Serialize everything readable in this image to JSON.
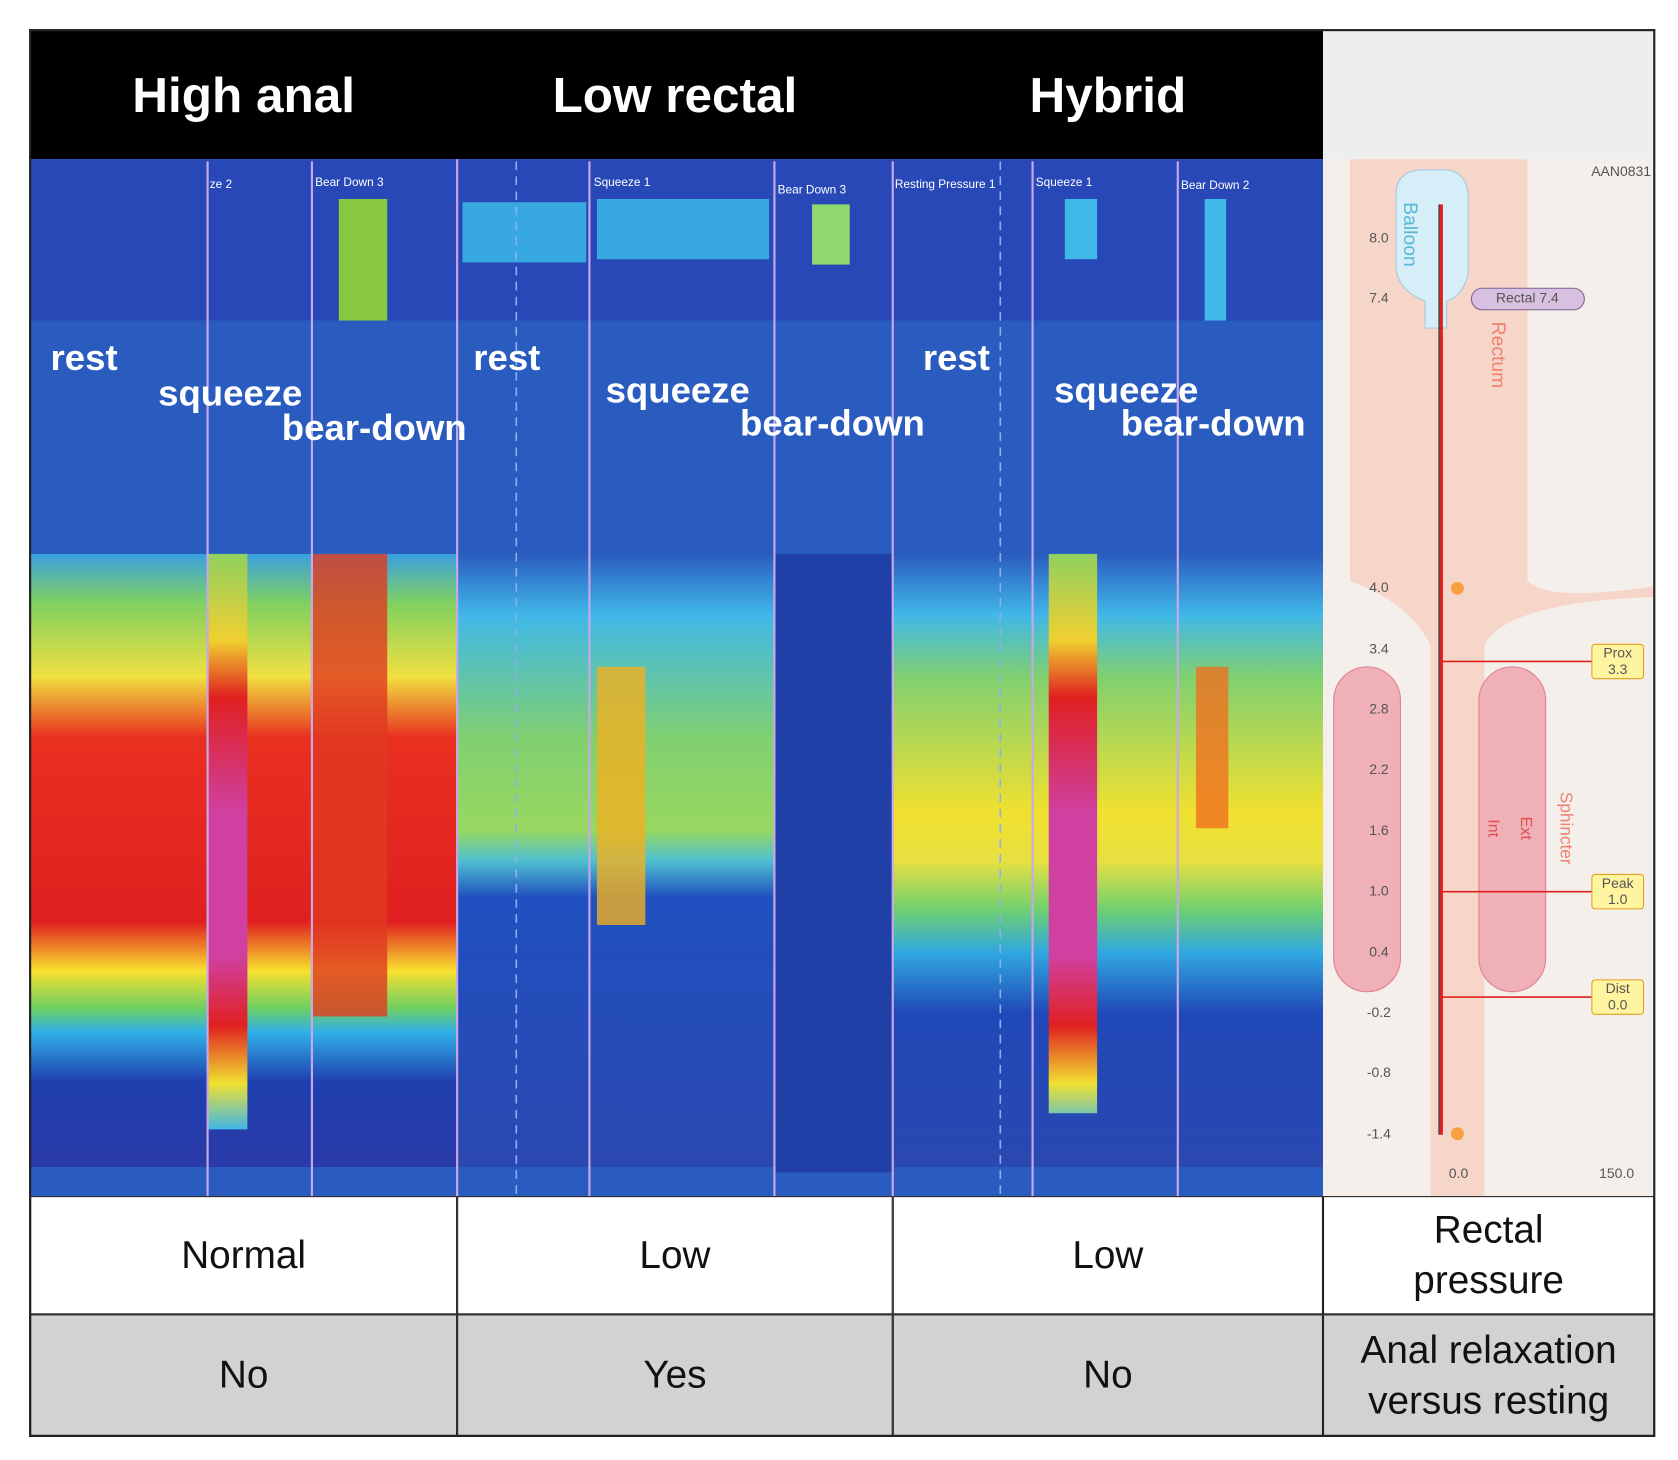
{
  "headers": [
    "High anal",
    "Low rectal",
    "Hybrid"
  ],
  "panels": [
    {
      "labels": [
        "ze 2",
        "Bear Down 3"
      ],
      "phases": [
        "rest",
        "squeeze",
        "bear-down"
      ]
    },
    {
      "labels": [
        "Squeeze 1",
        "Bear Down 3"
      ],
      "phases": [
        "rest",
        "squeeze",
        "bear-down"
      ]
    },
    {
      "labels": [
        "Resting Pressure 1",
        "Squeeze 1",
        "Bear Down 2"
      ],
      "phases": [
        "rest",
        "squeeze",
        "bear-down"
      ]
    }
  ],
  "diagram": {
    "id": "AAN0831",
    "balloon": "Balloon",
    "rectum": "Rectum",
    "rectal": "Rectal 7.4",
    "scale": [
      "8.0",
      "7.4",
      "4.0",
      "3.4",
      "2.8",
      "2.2",
      "1.6",
      "1.0",
      "0.4",
      "-0.2",
      "-0.8",
      "-1.4"
    ],
    "markers": [
      {
        "label": "Prox",
        "value": "3.3"
      },
      {
        "label": "Peak",
        "value": "1.0"
      },
      {
        "label": "Dist",
        "value": "0.0"
      }
    ],
    "sphincter": "Sphincter",
    "ext": "Ext",
    "int": "Int",
    "x_axis": [
      "0.0",
      "150.0"
    ]
  },
  "table": {
    "rows": [
      [
        "Normal",
        "Low",
        "Low",
        "Rectal pressure"
      ],
      [
        "No",
        "Yes",
        "No",
        "Anal relaxation versus resting"
      ]
    ]
  }
}
